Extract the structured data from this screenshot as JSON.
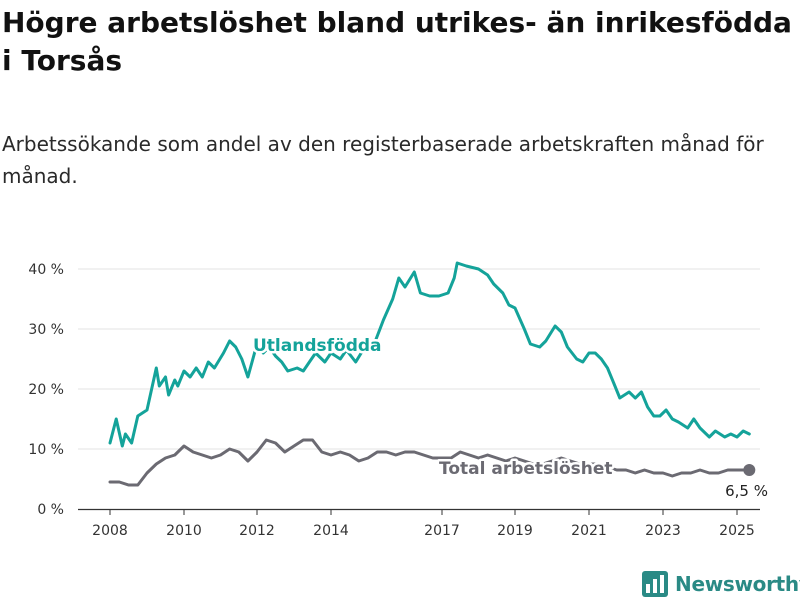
{
  "title": "Högre arbetslöshet bland utrikes- än inrikesfödda i Torsås",
  "subtitle": "Arbetssökande som andel av den registerbaserade arbetskraften månad för månad.",
  "brand": {
    "name": "Newsworthy",
    "icon": "bar-chart-logo-icon",
    "color": "#2a8a85"
  },
  "chart_data": {
    "type": "line",
    "ylim": [
      0,
      40
    ],
    "yticks": [
      "0 %",
      "10 %",
      "20 %",
      "30 %",
      "40 %"
    ],
    "xticks": [
      "2008",
      "2010",
      "2012",
      "2014",
      "2017",
      "2019",
      "2021",
      "2023",
      "2025"
    ],
    "grid": true,
    "end_label": "6,5 %",
    "series": [
      {
        "name": "Utlandsfödda",
        "color": "#14a39a",
        "points": [
          [
            "2008-01",
            11.0
          ],
          [
            "2008-03",
            15.0
          ],
          [
            "2008-05",
            10.5
          ],
          [
            "2008-06",
            12.5
          ],
          [
            "2008-08",
            11.0
          ],
          [
            "2008-10",
            15.5
          ],
          [
            "2009-01",
            16.5
          ],
          [
            "2009-04",
            23.5
          ],
          [
            "2009-05",
            20.5
          ],
          [
            "2009-07",
            22.0
          ],
          [
            "2009-08",
            19.0
          ],
          [
            "2009-10",
            21.5
          ],
          [
            "2009-11",
            20.5
          ],
          [
            "2010-01",
            23.0
          ],
          [
            "2010-03",
            22.0
          ],
          [
            "2010-05",
            23.5
          ],
          [
            "2010-07",
            22.0
          ],
          [
            "2010-09",
            24.5
          ],
          [
            "2010-11",
            23.5
          ],
          [
            "2011-02",
            26.0
          ],
          [
            "2011-04",
            28.0
          ],
          [
            "2011-06",
            27.0
          ],
          [
            "2011-08",
            25.0
          ],
          [
            "2011-10",
            22.0
          ],
          [
            "2012-01",
            27.5
          ],
          [
            "2012-03",
            26.0
          ],
          [
            "2012-05",
            27.0
          ],
          [
            "2012-07",
            25.5
          ],
          [
            "2012-09",
            24.5
          ],
          [
            "2012-11",
            23.0
          ],
          [
            "2013-02",
            23.5
          ],
          [
            "2013-04",
            23.0
          ],
          [
            "2013-06",
            24.5
          ],
          [
            "2013-08",
            26.0
          ],
          [
            "2013-11",
            24.5
          ],
          [
            "2014-01",
            26.0
          ],
          [
            "2014-04",
            25.0
          ],
          [
            "2014-06",
            26.5
          ],
          [
            "2014-09",
            24.5
          ],
          [
            "2014-12",
            27.0
          ],
          [
            "2015-03",
            27.5
          ],
          [
            "2015-06",
            31.5
          ],
          [
            "2015-09",
            35.0
          ],
          [
            "2015-11",
            38.5
          ],
          [
            "2016-01",
            37.0
          ],
          [
            "2016-04",
            39.5
          ],
          [
            "2016-06",
            36.0
          ],
          [
            "2016-09",
            35.5
          ],
          [
            "2016-12",
            35.5
          ],
          [
            "2017-03",
            36.0
          ],
          [
            "2017-05",
            38.5
          ],
          [
            "2017-06",
            41.0
          ],
          [
            "2017-09",
            40.5
          ],
          [
            "2018-01",
            40.0
          ],
          [
            "2018-04",
            39.0
          ],
          [
            "2018-06",
            37.5
          ],
          [
            "2018-09",
            36.0
          ],
          [
            "2018-11",
            34.0
          ],
          [
            "2019-01",
            33.5
          ],
          [
            "2019-04",
            30.0
          ],
          [
            "2019-06",
            27.5
          ],
          [
            "2019-09",
            27.0
          ],
          [
            "2019-11",
            28.0
          ],
          [
            "2020-02",
            30.5
          ],
          [
            "2020-04",
            29.5
          ],
          [
            "2020-06",
            27.0
          ],
          [
            "2020-09",
            25.0
          ],
          [
            "2020-11",
            24.5
          ],
          [
            "2021-01",
            26.0
          ],
          [
            "2021-03",
            26.0
          ],
          [
            "2021-05",
            25.0
          ],
          [
            "2021-07",
            23.5
          ],
          [
            "2021-09",
            21.0
          ],
          [
            "2021-11",
            18.5
          ],
          [
            "2022-02",
            19.5
          ],
          [
            "2022-04",
            18.5
          ],
          [
            "2022-06",
            19.5
          ],
          [
            "2022-08",
            17.0
          ],
          [
            "2022-10",
            15.5
          ],
          [
            "2022-12",
            15.5
          ],
          [
            "2023-02",
            16.5
          ],
          [
            "2023-04",
            15.0
          ],
          [
            "2023-06",
            14.5
          ],
          [
            "2023-09",
            13.5
          ],
          [
            "2023-11",
            15.0
          ],
          [
            "2024-01",
            13.5
          ],
          [
            "2024-04",
            12.0
          ],
          [
            "2024-06",
            13.0
          ],
          [
            "2024-09",
            12.0
          ],
          [
            "2024-11",
            12.5
          ],
          [
            "2025-01",
            12.0
          ],
          [
            "2025-03",
            13.0
          ],
          [
            "2025-05",
            12.5
          ]
        ]
      },
      {
        "name": "Total arbetslöshet",
        "color": "#6b6a72",
        "points": [
          [
            "2008-01",
            4.5
          ],
          [
            "2008-04",
            4.5
          ],
          [
            "2008-07",
            4.0
          ],
          [
            "2008-10",
            4.0
          ],
          [
            "2009-01",
            6.0
          ],
          [
            "2009-04",
            7.5
          ],
          [
            "2009-07",
            8.5
          ],
          [
            "2009-10",
            9.0
          ],
          [
            "2010-01",
            10.5
          ],
          [
            "2010-04",
            9.5
          ],
          [
            "2010-07",
            9.0
          ],
          [
            "2010-10",
            8.5
          ],
          [
            "2011-01",
            9.0
          ],
          [
            "2011-04",
            10.0
          ],
          [
            "2011-07",
            9.5
          ],
          [
            "2011-10",
            8.0
          ],
          [
            "2012-01",
            9.5
          ],
          [
            "2012-04",
            11.5
          ],
          [
            "2012-07",
            11.0
          ],
          [
            "2012-10",
            9.5
          ],
          [
            "2013-01",
            10.5
          ],
          [
            "2013-04",
            11.5
          ],
          [
            "2013-07",
            11.5
          ],
          [
            "2013-10",
            9.5
          ],
          [
            "2014-01",
            9.0
          ],
          [
            "2014-04",
            9.5
          ],
          [
            "2014-07",
            9.0
          ],
          [
            "2014-10",
            8.0
          ],
          [
            "2015-01",
            8.5
          ],
          [
            "2015-04",
            9.5
          ],
          [
            "2015-07",
            9.5
          ],
          [
            "2015-10",
            9.0
          ],
          [
            "2016-01",
            9.5
          ],
          [
            "2016-04",
            9.5
          ],
          [
            "2016-07",
            9.0
          ],
          [
            "2016-10",
            8.5
          ],
          [
            "2017-01",
            8.5
          ],
          [
            "2017-04",
            8.5
          ],
          [
            "2017-07",
            9.5
          ],
          [
            "2017-10",
            9.0
          ],
          [
            "2018-01",
            8.5
          ],
          [
            "2018-04",
            9.0
          ],
          [
            "2018-07",
            8.5
          ],
          [
            "2018-10",
            8.0
          ],
          [
            "2019-01",
            8.5
          ],
          [
            "2019-04",
            8.0
          ],
          [
            "2019-07",
            7.5
          ],
          [
            "2019-10",
            7.5
          ],
          [
            "2020-01",
            8.0
          ],
          [
            "2020-04",
            8.5
          ],
          [
            "2020-07",
            8.0
          ],
          [
            "2020-10",
            7.5
          ],
          [
            "2021-01",
            7.5
          ],
          [
            "2021-04",
            7.5
          ],
          [
            "2021-07",
            7.0
          ],
          [
            "2021-10",
            6.5
          ],
          [
            "2022-01",
            6.5
          ],
          [
            "2022-04",
            6.0
          ],
          [
            "2022-07",
            6.5
          ],
          [
            "2022-10",
            6.0
          ],
          [
            "2023-01",
            6.0
          ],
          [
            "2023-04",
            5.5
          ],
          [
            "2023-07",
            6.0
          ],
          [
            "2023-10",
            6.0
          ],
          [
            "2024-01",
            6.5
          ],
          [
            "2024-04",
            6.0
          ],
          [
            "2024-07",
            6.0
          ],
          [
            "2024-10",
            6.5
          ],
          [
            "2025-01",
            6.5
          ],
          [
            "2025-05",
            6.5
          ]
        ]
      }
    ]
  }
}
